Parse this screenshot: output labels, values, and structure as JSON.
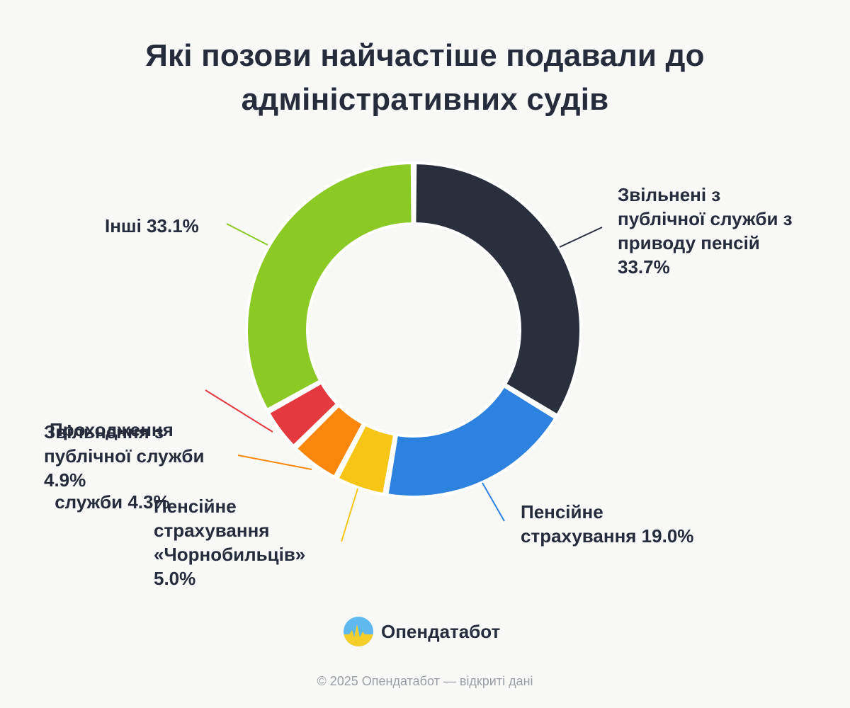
{
  "title_lines": [
    "Які позови найчастіше подавали до",
    "адміністративних судів"
  ],
  "chart_data": {
    "type": "pie",
    "variant": "donut",
    "title": "Які позови найчастіше подавали до адміністративних судів",
    "unit": "%",
    "slices": [
      {
        "label_lines": [
          "Звільнені з",
          "публічної служби з",
          "приводу пенсій",
          "33.7%"
        ],
        "value": 33.7,
        "color": "#2a2f3d"
      },
      {
        "label_lines": [
          "Пенсійне",
          "страхування 19.0%"
        ],
        "value": 19.0,
        "color": "#2e82df"
      },
      {
        "label_lines": [
          "Пенсійне",
          "страхування",
          "«Чорнобильців»",
          "5.0%"
        ],
        "value": 5.0,
        "color": "#f6c515"
      },
      {
        "label_lines": [
          "Звільнення з",
          "публічної служби",
          "4.9%"
        ],
        "value": 4.9,
        "color": "#fa870c"
      },
      {
        "label_lines": [
          "Проходження",
          " служби 4.3%"
        ],
        "value": 4.3,
        "color": "#e3393f"
      },
      {
        "label_lines": [
          "Інші 33.1%"
        ],
        "value": 33.1,
        "color": "#8bc924"
      }
    ]
  },
  "brand": {
    "name": "Опендатабот"
  },
  "footer": "© 2025 Опендатабот — відкриті дані"
}
